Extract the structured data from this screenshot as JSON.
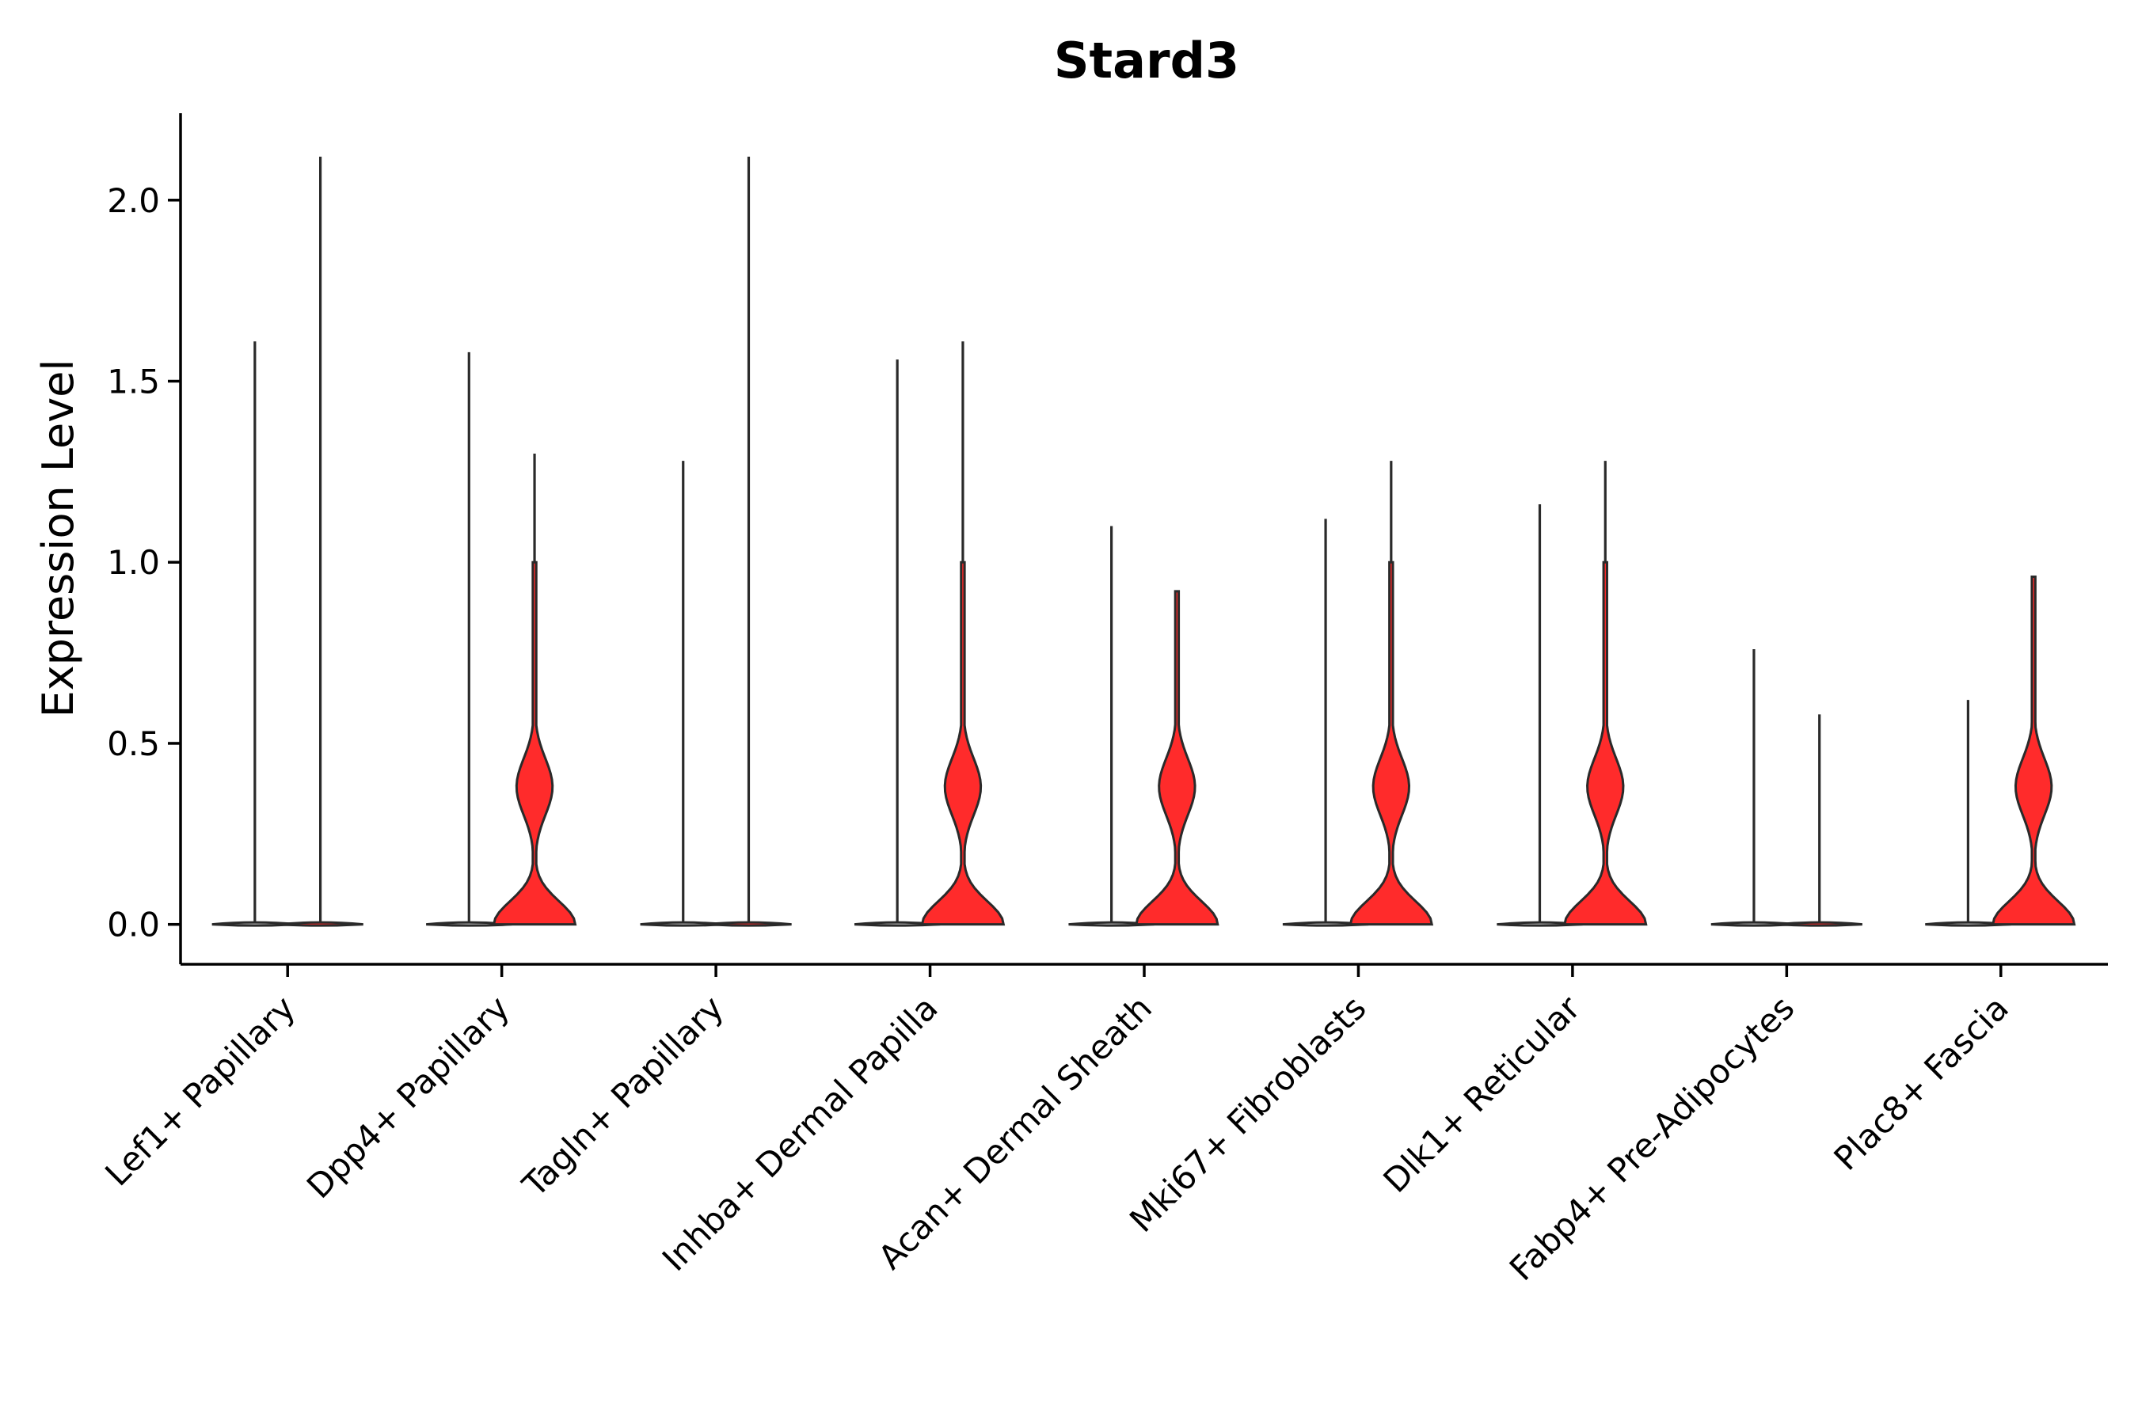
{
  "chart_data": {
    "type": "violin",
    "title": "Stard3",
    "xlabel": "",
    "ylabel": "Expression Level",
    "ylim": [
      -0.11,
      2.24
    ],
    "yticks": [
      "0.0",
      "0.5",
      "1.0",
      "1.5",
      "2.0"
    ],
    "ytick_values": [
      0.0,
      0.5,
      1.0,
      1.5,
      2.0
    ],
    "grid": false,
    "legend": "none",
    "categories": [
      "Lef1+ Papillary",
      "Dpp4+ Papillary",
      "Tagln+ Papillary",
      "Inhba+ Dermal Papilla",
      "Acan+ Dermal Sheath",
      "Mki67+ Fibroblasts",
      "Dlk1+ Reticular",
      "Fabp4+ Pre-Adipocytes",
      "Plac8+ Fascia"
    ],
    "series": [
      {
        "color": "#cfcfcf",
        "max": [
          1.61,
          1.58,
          1.28,
          1.56,
          1.1,
          1.12,
          1.16,
          0.76,
          0.62
        ]
      },
      {
        "color": "#ff2b2b",
        "max": [
          2.12,
          1.3,
          2.12,
          1.61,
          0.92,
          1.28,
          1.28,
          0.58,
          0.96
        ]
      }
    ]
  }
}
